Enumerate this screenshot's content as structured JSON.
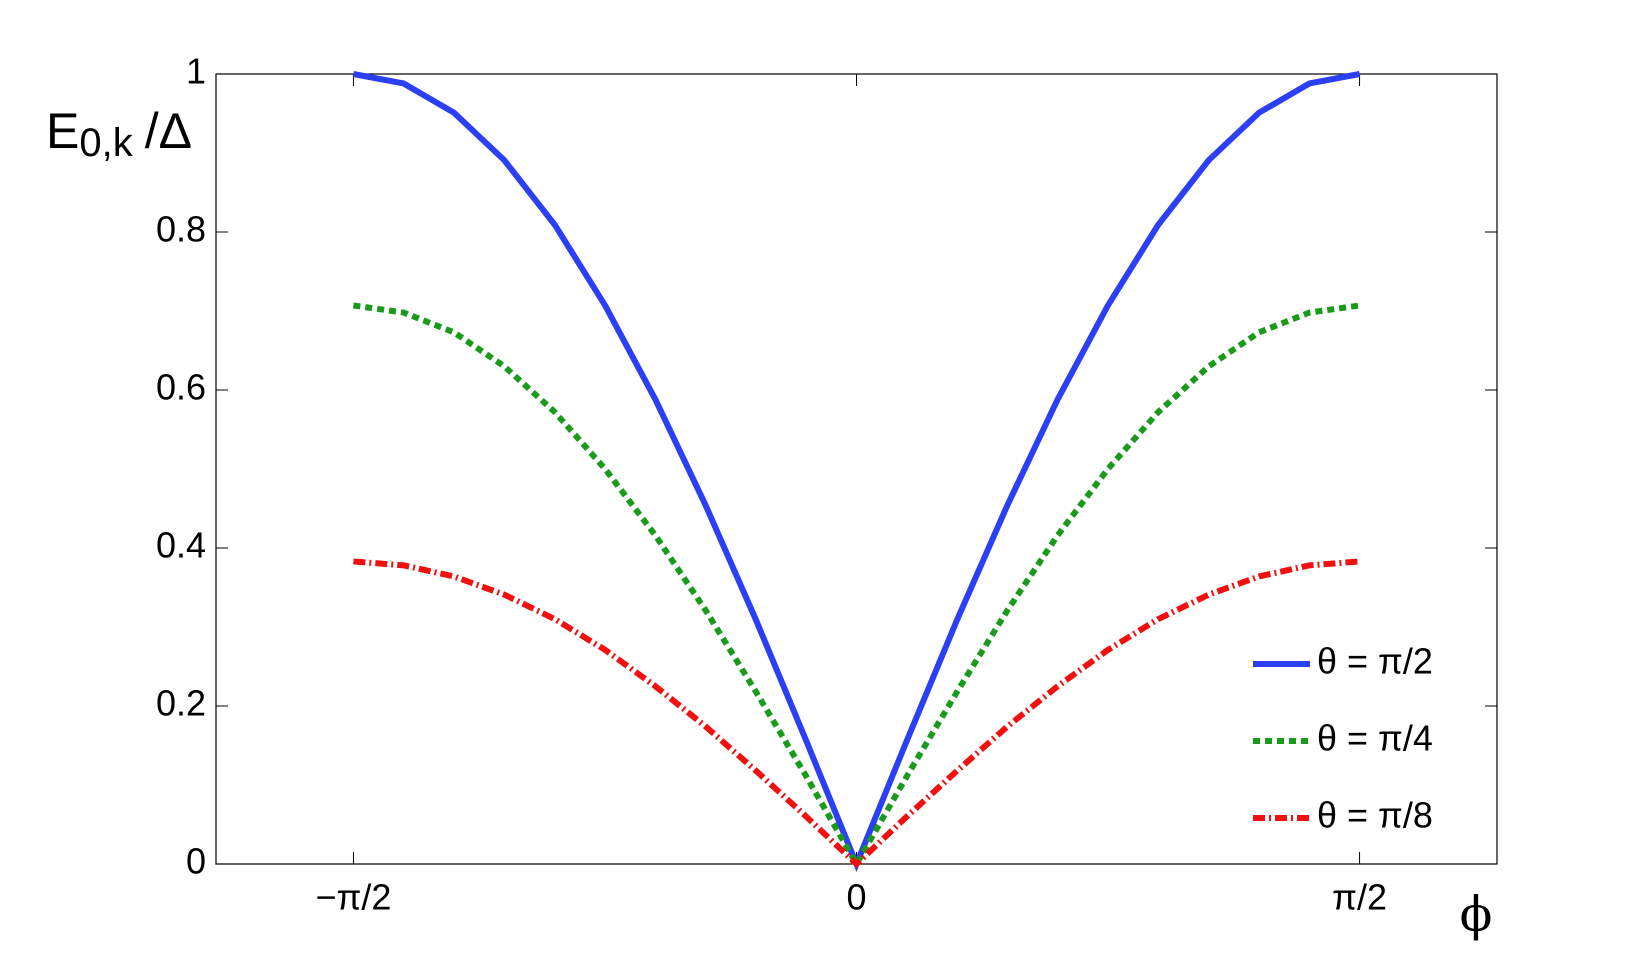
{
  "chart_data": {
    "type": "line",
    "y_label": {
      "main": "E",
      "subscript": "0,k",
      "suffix": "/Δ"
    },
    "x_label": "ϕ",
    "x": [
      -1.571,
      -1.414,
      -1.257,
      -1.1,
      -0.942,
      -0.785,
      -0.628,
      -0.471,
      -0.314,
      -0.157,
      0,
      0.157,
      0.314,
      0.471,
      0.628,
      0.785,
      0.942,
      1.1,
      1.257,
      1.414,
      1.571
    ],
    "series": [
      {
        "name": "θ = π/2",
        "color": "#2b3ff5",
        "linestyle": "solid",
        "values": [
          1,
          0.988,
          0.951,
          0.891,
          0.809,
          0.707,
          0.588,
          0.454,
          0.309,
          0.156,
          0,
          0.156,
          0.309,
          0.454,
          0.588,
          0.707,
          0.809,
          0.891,
          0.951,
          0.988,
          1
        ]
      },
      {
        "name": "θ = π/4",
        "color": "#1a9a1a",
        "linestyle": "dotted",
        "values": [
          0.707,
          0.698,
          0.673,
          0.63,
          0.572,
          0.5,
          0.416,
          0.321,
          0.218,
          0.111,
          0,
          0.111,
          0.218,
          0.321,
          0.416,
          0.5,
          0.572,
          0.63,
          0.673,
          0.698,
          0.707
        ]
      },
      {
        "name": "θ = π/8",
        "color": "#f01010",
        "linestyle": "dashdot",
        "values": [
          0.383,
          0.378,
          0.364,
          0.341,
          0.31,
          0.271,
          0.225,
          0.174,
          0.118,
          0.06,
          0,
          0.06,
          0.118,
          0.174,
          0.225,
          0.271,
          0.31,
          0.341,
          0.364,
          0.378,
          0.383
        ]
      }
    ],
    "xlim": [
      -2,
      2
    ],
    "xticks": [
      {
        "value": -1.5708,
        "label": "−π/2"
      },
      0,
      {
        "value": 1.5708,
        "label": "π/2"
      }
    ],
    "ylim": [
      0,
      1
    ],
    "yticks": [
      0,
      0.2,
      0.4,
      0.6,
      0.8,
      1
    ],
    "grid": false,
    "legend": "lower right"
  }
}
